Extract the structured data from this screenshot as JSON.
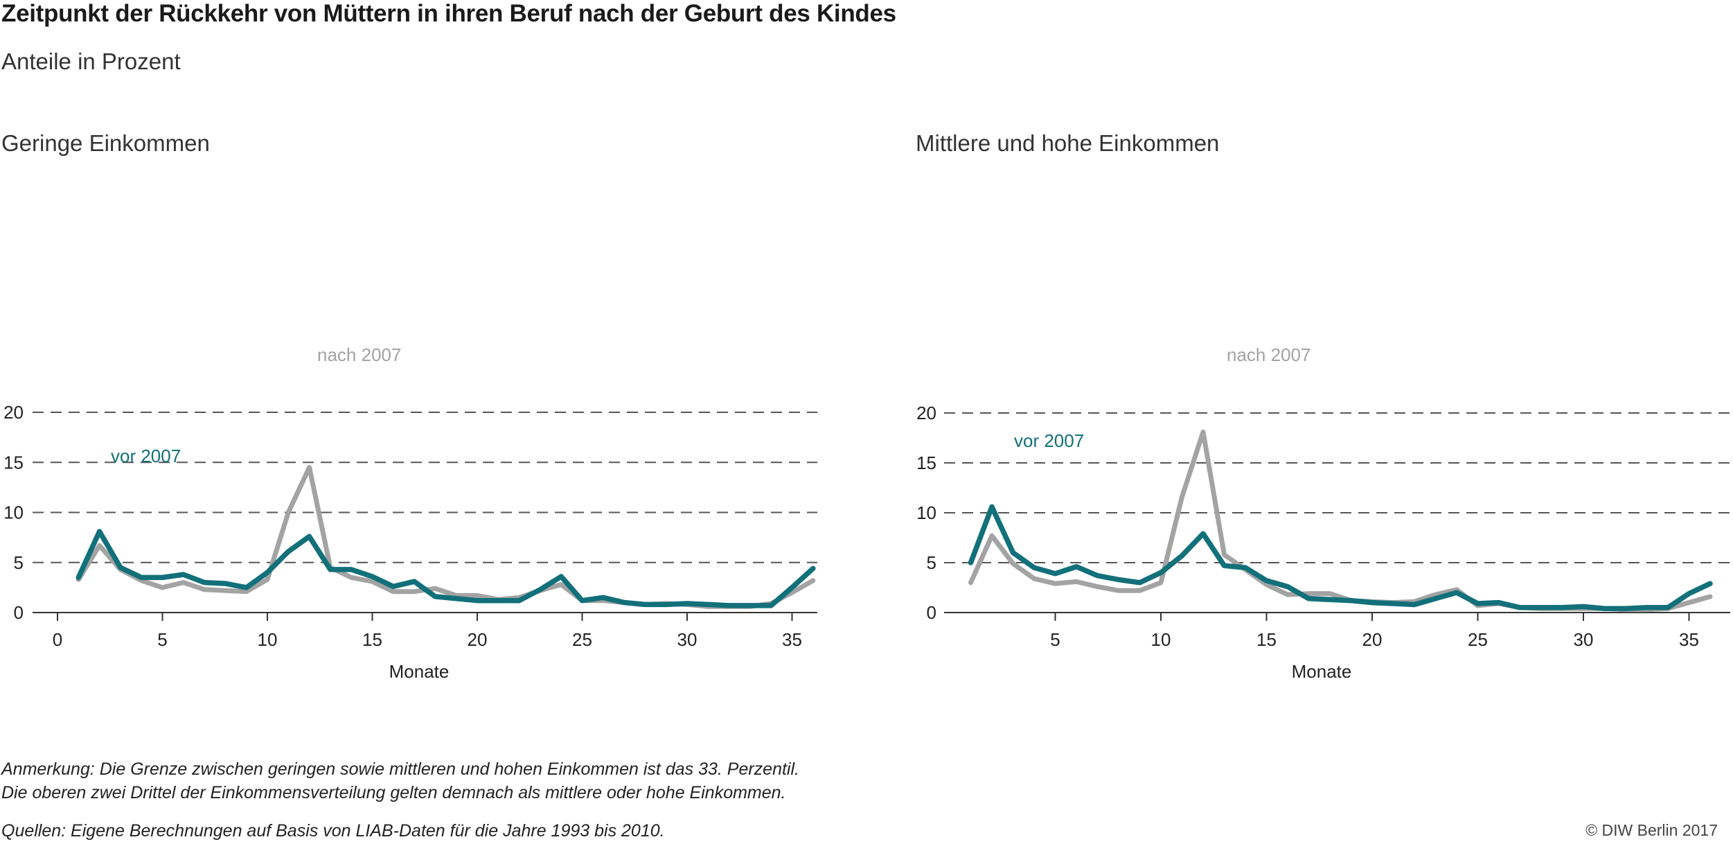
{
  "header": {
    "title": "Zeitpunkt der Rückkehr von Müttern in ihren Beruf nach der Geburt des Kindes",
    "subtitle": "Anteile in Prozent"
  },
  "colors": {
    "nach_2007": "#a3a3a3",
    "vor_2007": "#12707a",
    "grid": "#555555",
    "axis": "#333333"
  },
  "chart_data": [
    {
      "type": "line",
      "title": "Geringe Einkommen",
      "xlabel": "Monate",
      "ylabel": "",
      "xlim": [
        0,
        37
      ],
      "ylim": [
        0,
        20
      ],
      "x_ticks": [
        0,
        5,
        10,
        15,
        20,
        25,
        30,
        35
      ],
      "y_ticks": [
        0,
        5,
        10,
        15,
        20
      ],
      "grid": "horizontal dashed",
      "x": [
        1,
        2,
        3,
        4,
        5,
        6,
        7,
        8,
        9,
        10,
        11,
        12,
        13,
        14,
        15,
        16,
        17,
        18,
        19,
        20,
        21,
        22,
        23,
        24,
        25,
        26,
        27,
        28,
        29,
        30,
        31,
        32,
        33,
        34,
        35,
        36
      ],
      "series": [
        {
          "name": "nach 2007",
          "label": "nach 2007",
          "values": [
            3.3,
            6.7,
            4.3,
            3.2,
            2.5,
            3.0,
            2.3,
            2.2,
            2.1,
            3.3,
            10.0,
            14.5,
            4.5,
            3.5,
            3.1,
            2.1,
            2.1,
            2.4,
            1.7,
            1.7,
            1.3,
            1.5,
            2.2,
            2.8,
            1.2,
            1.2,
            1.0,
            0.8,
            0.9,
            0.8,
            0.6,
            0.6,
            0.6,
            0.9,
            2.0,
            3.2
          ]
        },
        {
          "name": "vor 2007",
          "label": "vor 2007",
          "values": [
            3.5,
            8.1,
            4.5,
            3.5,
            3.5,
            3.8,
            3.0,
            2.9,
            2.5,
            4.0,
            6.1,
            7.6,
            4.3,
            4.3,
            3.6,
            2.6,
            3.1,
            1.6,
            1.4,
            1.2,
            1.2,
            1.2,
            2.3,
            3.6,
            1.2,
            1.5,
            1.0,
            0.8,
            0.8,
            0.9,
            0.8,
            0.7,
            0.7,
            0.7,
            2.5,
            4.4
          ]
        }
      ]
    },
    {
      "type": "line",
      "title": "Mittlere und hohe Einkommen",
      "xlabel": "Monate",
      "ylabel": "",
      "xlim": [
        0,
        37
      ],
      "ylim": [
        0,
        20
      ],
      "x_ticks": [
        5,
        10,
        15,
        20,
        25,
        30,
        35
      ],
      "y_ticks": [
        0,
        5,
        10,
        15,
        20
      ],
      "grid": "horizontal dashed",
      "x": [
        1,
        2,
        3,
        4,
        5,
        6,
        7,
        8,
        9,
        10,
        11,
        12,
        13,
        14,
        15,
        16,
        17,
        18,
        19,
        20,
        21,
        22,
        23,
        24,
        25,
        26,
        27,
        28,
        29,
        30,
        31,
        32,
        33,
        34,
        35,
        36
      ],
      "series": [
        {
          "name": "nach 2007",
          "label": "nach 2007",
          "values": [
            3.0,
            7.7,
            4.9,
            3.4,
            2.9,
            3.1,
            2.6,
            2.2,
            2.2,
            3.0,
            11.6,
            18.1,
            5.8,
            4.3,
            2.8,
            1.8,
            1.9,
            1.9,
            1.2,
            1.1,
            1.0,
            1.1,
            1.8,
            2.3,
            0.7,
            0.9,
            0.5,
            0.4,
            0.4,
            0.4,
            0.4,
            0.3,
            0.3,
            0.4,
            1.0,
            1.6
          ]
        },
        {
          "name": "vor 2007",
          "label": "vor 2007",
          "values": [
            5.0,
            10.6,
            6.0,
            4.5,
            3.9,
            4.6,
            3.7,
            3.3,
            3.0,
            4.0,
            5.7,
            7.9,
            4.7,
            4.5,
            3.2,
            2.6,
            1.4,
            1.3,
            1.2,
            1.0,
            0.9,
            0.8,
            1.4,
            2.0,
            0.9,
            1.0,
            0.5,
            0.5,
            0.5,
            0.6,
            0.4,
            0.4,
            0.5,
            0.5,
            1.9,
            2.9
          ]
        }
      ]
    }
  ],
  "notes": {
    "line1": "Anmerkung: Die Grenze zwischen geringen sowie mittleren und hohen Einkommen ist das 33. Perzentil.",
    "line2": "Die oberen zwei Drittel der Einkommensverteilung gelten demnach als mittlere oder hohe Einkommen.",
    "sources": "Quellen: Eigene Berechnungen auf Basis von LIAB-Daten für die Jahre 1993 bis 2010.",
    "copyright": "© DIW Berlin 2017"
  }
}
